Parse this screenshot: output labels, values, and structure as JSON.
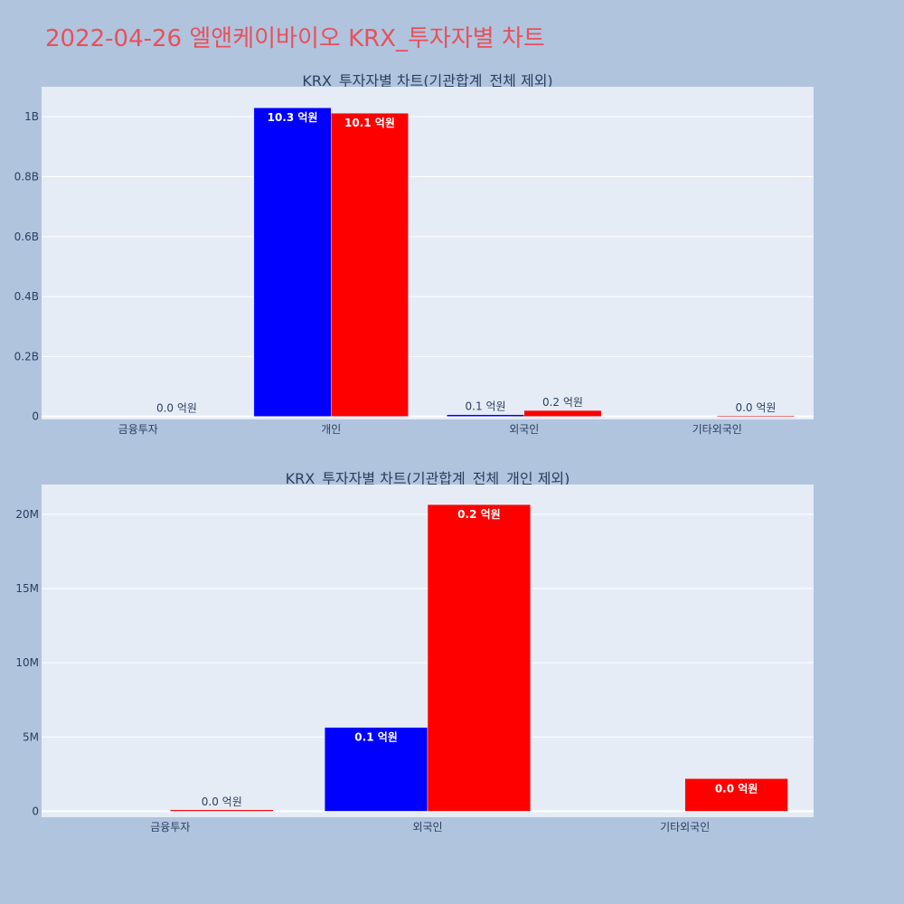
{
  "title": "2022-04-26 엘앤케이바이오 KRX_투자자별 차트",
  "colors": {
    "background": "#b0c4de",
    "plot_bg": "#e5ecf6",
    "buy": "#0000ff",
    "sell": "#ff0000",
    "title": "#e8505b"
  },
  "chart_data": [
    {
      "type": "bar",
      "title": "KRX_투자자별 차트(기관합계_전체 제외)",
      "categories": [
        "금융투자",
        "개인",
        "외국인",
        "기타외국인"
      ],
      "ylim": [
        -10000000,
        1100000000
      ],
      "yticks": [
        {
          "value": 0,
          "label": "0"
        },
        {
          "value": 200000000,
          "label": "0.2B"
        },
        {
          "value": 400000000,
          "label": "0.4B"
        },
        {
          "value": 600000000,
          "label": "0.6B"
        },
        {
          "value": 800000000,
          "label": "0.8B"
        },
        {
          "value": 1000000000,
          "label": "1B"
        }
      ],
      "grid": true,
      "series": [
        {
          "color": "#0000ff",
          "values": [
            0,
            1030000000,
            6000000,
            0
          ],
          "labels": [
            "",
            "10.3 억원",
            "0.1 억원",
            ""
          ]
        },
        {
          "color": "#ff0000",
          "values": [
            0,
            1012000000,
            20000000,
            2000000
          ],
          "labels": [
            "0.0 억원",
            "10.1 억원",
            "0.2 억원",
            "0.0 억원"
          ]
        }
      ]
    },
    {
      "type": "bar",
      "title": "KRX_투자자별 차트(기관합계_전체_개인 제외)",
      "categories": [
        "금융투자",
        "외국인",
        "기타외국인"
      ],
      "ylim": [
        -400000,
        22000000
      ],
      "yticks": [
        {
          "value": 0,
          "label": "0"
        },
        {
          "value": 5000000,
          "label": "5M"
        },
        {
          "value": 10000000,
          "label": "10M"
        },
        {
          "value": 15000000,
          "label": "15M"
        },
        {
          "value": 20000000,
          "label": "20M"
        }
      ],
      "grid": true,
      "series": [
        {
          "color": "#0000ff",
          "values": [
            0,
            5650000,
            0
          ],
          "labels": [
            "",
            "0.1 억원",
            ""
          ]
        },
        {
          "color": "#ff0000",
          "values": [
            100000,
            20650000,
            2200000
          ],
          "labels": [
            "0.0 억원",
            "0.2 억원",
            "0.0 억원"
          ]
        }
      ]
    }
  ]
}
